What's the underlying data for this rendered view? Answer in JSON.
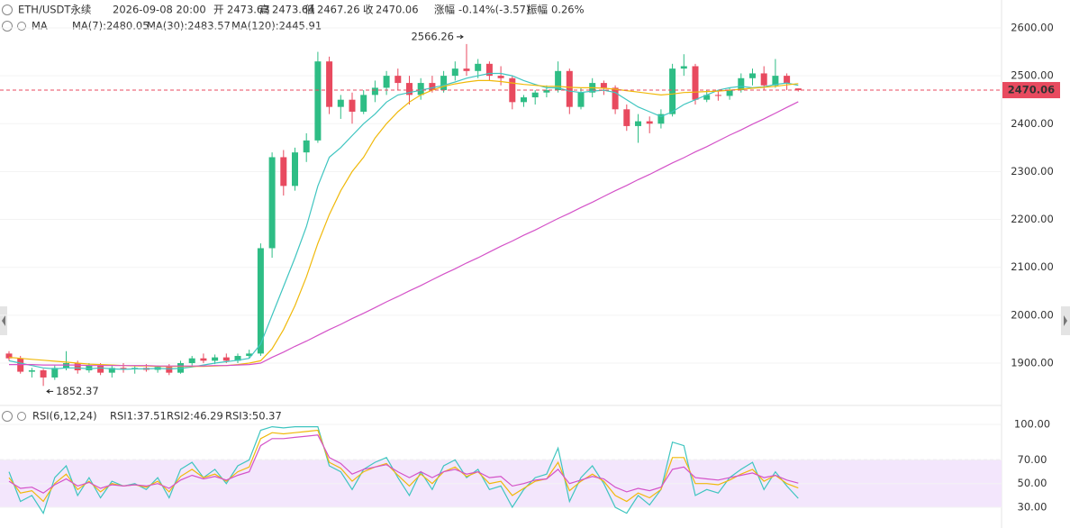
{
  "chart_data": [
    {
      "type": "candlestick",
      "title": "ETH/USDT永续",
      "subtitle": "2026-09-08 20:00",
      "info_labels": {
        "open": "开",
        "high": "高",
        "low": "低",
        "close": "收"
      },
      "change_label": "涨幅",
      "change": "-0.14%(-3.57)",
      "amplitude_label": "振幅",
      "amplitude": "0.26%",
      "ma_label": "MA",
      "up_color": "#2ebd85",
      "down_color": "#e84a5f",
      "open": [
        1920,
        1910,
        1882,
        1885,
        1870,
        1890,
        1900,
        1885,
        1895,
        1880,
        1890,
        1888,
        1890,
        1886,
        1892,
        1880,
        1900,
        1910,
        1905,
        1912,
        1905,
        1915,
        1920,
        2140,
        2330,
        2270,
        2340,
        2365,
        2530,
        2435,
        2450,
        2425,
        2460,
        2475,
        2500,
        2485,
        2460,
        2485,
        2470,
        2500,
        2515,
        2510,
        2525,
        2500,
        2495,
        2445,
        2455,
        2465,
        2470,
        2510,
        2435,
        2465,
        2485,
        2475,
        2430,
        2395,
        2405,
        2400,
        2420,
        2515,
        2520,
        2450,
        2460,
        2458,
        2470,
        2495,
        2505,
        2480,
        2500,
        2473.63
      ],
      "high": [
        1925,
        1915,
        1890,
        1888,
        1895,
        1925,
        1905,
        1900,
        1900,
        1895,
        1900,
        1895,
        1898,
        1895,
        1898,
        1905,
        1915,
        1920,
        1918,
        1920,
        1920,
        1928,
        2150,
        2340,
        2345,
        2350,
        2380,
        2550,
        2540,
        2460,
        2465,
        2470,
        2490,
        2510,
        2515,
        2500,
        2495,
        2500,
        2510,
        2530,
        2566.26,
        2535,
        2530,
        2520,
        2500,
        2460,
        2470,
        2480,
        2530,
        2515,
        2475,
        2495,
        2490,
        2480,
        2440,
        2420,
        2415,
        2430,
        2525,
        2545,
        2525,
        2470,
        2468,
        2475,
        2505,
        2515,
        2520,
        2535,
        2505,
        2473.64
      ],
      "low": [
        1905,
        1878,
        1870,
        1852.37,
        1865,
        1885,
        1878,
        1880,
        1875,
        1870,
        1880,
        1878,
        1882,
        1880,
        1875,
        1878,
        1895,
        1900,
        1898,
        1900,
        1900,
        1910,
        1915,
        2120,
        2250,
        2260,
        2320,
        2360,
        2420,
        2410,
        2400,
        2420,
        2445,
        2460,
        2470,
        2440,
        2450,
        2465,
        2465,
        2490,
        2500,
        2495,
        2490,
        2480,
        2430,
        2435,
        2440,
        2455,
        2465,
        2420,
        2430,
        2455,
        2460,
        2420,
        2385,
        2360,
        2380,
        2390,
        2415,
        2500,
        2440,
        2445,
        2448,
        2450,
        2465,
        2480,
        2470,
        2475,
        2470,
        2467.26
      ],
      "close": [
        1910,
        1882,
        1885,
        1870,
        1890,
        1900,
        1885,
        1895,
        1880,
        1890,
        1888,
        1890,
        1886,
        1892,
        1880,
        1900,
        1910,
        1905,
        1912,
        1905,
        1915,
        1920,
        2140,
        2330,
        2270,
        2340,
        2365,
        2530,
        2435,
        2450,
        2425,
        2460,
        2475,
        2500,
        2485,
        2460,
        2485,
        2470,
        2500,
        2515,
        2510,
        2525,
        2500,
        2495,
        2445,
        2455,
        2465,
        2470,
        2510,
        2435,
        2465,
        2485,
        2475,
        2430,
        2395,
        2405,
        2400,
        2420,
        2515,
        2520,
        2450,
        2460,
        2458,
        2470,
        2495,
        2505,
        2480,
        2500,
        2485,
        2470.06
      ],
      "series": [
        {
          "name": "MA(7):2480.05",
          "color": "#3fc5c0",
          "values": [
            1905,
            1900,
            1895,
            1890,
            1888,
            1890,
            1890,
            1888,
            1890,
            1888,
            1887,
            1888,
            1888,
            1889,
            1888,
            1889,
            1892,
            1896,
            1900,
            1903,
            1906,
            1910,
            1940,
            2000,
            2060,
            2120,
            2185,
            2270,
            2330,
            2350,
            2375,
            2400,
            2420,
            2445,
            2460,
            2465,
            2470,
            2475,
            2480,
            2487,
            2495,
            2500,
            2505,
            2505,
            2500,
            2490,
            2482,
            2475,
            2475,
            2468,
            2465,
            2468,
            2470,
            2465,
            2450,
            2435,
            2425,
            2415,
            2425,
            2440,
            2450,
            2460,
            2470,
            2475,
            2478,
            2475,
            2477,
            2482,
            2485,
            2480.05
          ]
        },
        {
          "name": "MA(30):2483.57",
          "color": "#f0b90b",
          "values": [
            1912,
            1910,
            1908,
            1906,
            1904,
            1902,
            1900,
            1898,
            1897,
            1896,
            1895,
            1894,
            1894,
            1893,
            1893,
            1893,
            1893,
            1893,
            1894,
            1895,
            1897,
            1900,
            1905,
            1930,
            1970,
            2020,
            2080,
            2150,
            2210,
            2260,
            2300,
            2330,
            2370,
            2400,
            2425,
            2445,
            2460,
            2470,
            2478,
            2483,
            2487,
            2490,
            2490,
            2488,
            2485,
            2482,
            2480,
            2478,
            2478,
            2476,
            2475,
            2475,
            2474,
            2472,
            2469,
            2466,
            2463,
            2460,
            2462,
            2465,
            2466,
            2467,
            2468,
            2470,
            2472,
            2474,
            2476,
            2478,
            2481,
            2483.57
          ]
        },
        {
          "name": "MA(120):2445.91",
          "color": "#d452c8",
          "values": [
            1897,
            1897,
            1897,
            1896,
            1896,
            1896,
            1896,
            1895,
            1895,
            1895,
            1895,
            1895,
            1895,
            1894,
            1894,
            1894,
            1894,
            1894,
            1895,
            1895,
            1896,
            1897,
            1900,
            1912,
            1923,
            1935,
            1946,
            1958,
            1970,
            1981,
            1993,
            2004,
            2016,
            2028,
            2039,
            2051,
            2062,
            2074,
            2086,
            2097,
            2109,
            2120,
            2132,
            2144,
            2155,
            2167,
            2178,
            2190,
            2202,
            2213,
            2225,
            2236,
            2248,
            2260,
            2271,
            2283,
            2294,
            2306,
            2318,
            2329,
            2341,
            2352,
            2364,
            2376,
            2387,
            2399,
            2410,
            2422,
            2434,
            2445.91
          ]
        }
      ],
      "ylim": [
        1840,
        2640
      ],
      "yticks": [
        {
          "value": 1900,
          "label": "1900.00"
        },
        {
          "value": 2000,
          "label": "2000.00"
        },
        {
          "value": 2100,
          "label": "2100.00"
        },
        {
          "value": 2200,
          "label": "2200.00"
        },
        {
          "value": 2300,
          "label": "2300.00"
        },
        {
          "value": 2400,
          "label": "2400.00"
        },
        {
          "value": 2500,
          "label": "2500.00"
        },
        {
          "value": 2600,
          "label": "2600.00"
        }
      ],
      "grid": true
    },
    {
      "type": "line",
      "title": "RSI(6,12,24)",
      "series": [
        {
          "name": "RSI1:37.51",
          "color": "#3fc5c0",
          "values": [
            60,
            35,
            40,
            25,
            55,
            65,
            40,
            55,
            38,
            52,
            48,
            50,
            45,
            55,
            38,
            62,
            68,
            55,
            62,
            50,
            65,
            70,
            95,
            98,
            97,
            98,
            98,
            98,
            65,
            60,
            45,
            62,
            68,
            72,
            55,
            40,
            60,
            45,
            65,
            70,
            55,
            62,
            45,
            48,
            30,
            45,
            55,
            58,
            80,
            35,
            55,
            65,
            50,
            30,
            25,
            40,
            32,
            45,
            85,
            82,
            40,
            45,
            42,
            55,
            62,
            68,
            45,
            60,
            48,
            37.51
          ]
        },
        {
          "name": "RSI2:46.29",
          "color": "#f0b90b",
          "values": [
            55,
            42,
            44,
            35,
            50,
            58,
            45,
            52,
            43,
            50,
            48,
            49,
            47,
            52,
            43,
            56,
            62,
            55,
            58,
            52,
            60,
            64,
            88,
            93,
            92,
            93,
            94,
            95,
            68,
            63,
            52,
            60,
            64,
            67,
            57,
            48,
            58,
            50,
            60,
            64,
            56,
            60,
            50,
            52,
            40,
            46,
            52,
            54,
            68,
            44,
            52,
            58,
            52,
            40,
            35,
            42,
            38,
            45,
            72,
            72,
            50,
            50,
            49,
            53,
            58,
            62,
            52,
            57,
            50,
            46.29
          ]
        },
        {
          "name": "RSI3:50.37",
          "color": "#d452c8",
          "values": [
            52,
            46,
            47,
            42,
            49,
            54,
            48,
            51,
            46,
            49,
            48,
            49,
            48,
            50,
            46,
            53,
            57,
            54,
            56,
            53,
            57,
            60,
            82,
            88,
            88,
            89,
            90,
            91,
            72,
            67,
            58,
            62,
            64,
            66,
            60,
            55,
            60,
            55,
            60,
            62,
            58,
            60,
            55,
            56,
            48,
            50,
            53,
            54,
            62,
            50,
            53,
            56,
            54,
            47,
            43,
            46,
            44,
            47,
            62,
            64,
            55,
            54,
            53,
            55,
            57,
            59,
            55,
            57,
            53,
            50.37
          ]
        }
      ],
      "band": [
        30,
        70
      ],
      "band_color": "#f3e6fc",
      "ylim": [
        25,
        105
      ],
      "yticks": [
        {
          "value": 30,
          "label": "30.00"
        },
        {
          "value": 50,
          "label": "50.00"
        },
        {
          "value": 70,
          "label": "70.00"
        },
        {
          "value": 100,
          "label": "100.00"
        }
      ],
      "grid": true
    }
  ]
}
